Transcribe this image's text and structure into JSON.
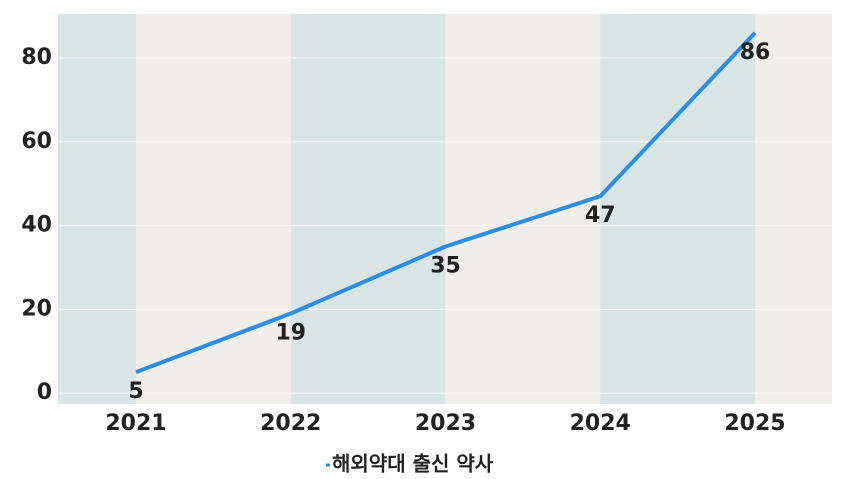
{
  "chart_data": {
    "type": "line",
    "categories": [
      "2021",
      "2022",
      "2023",
      "2024",
      "2025"
    ],
    "series": [
      {
        "name": "해외약대 출신 약사",
        "color": "#2b8de8",
        "values": [
          5,
          19,
          35,
          47,
          86
        ]
      }
    ],
    "ylim": [
      -2.6,
      90.5
    ],
    "yticks": [
      0,
      20,
      40,
      60,
      80
    ],
    "grid": true,
    "legend": "bottom"
  }
}
